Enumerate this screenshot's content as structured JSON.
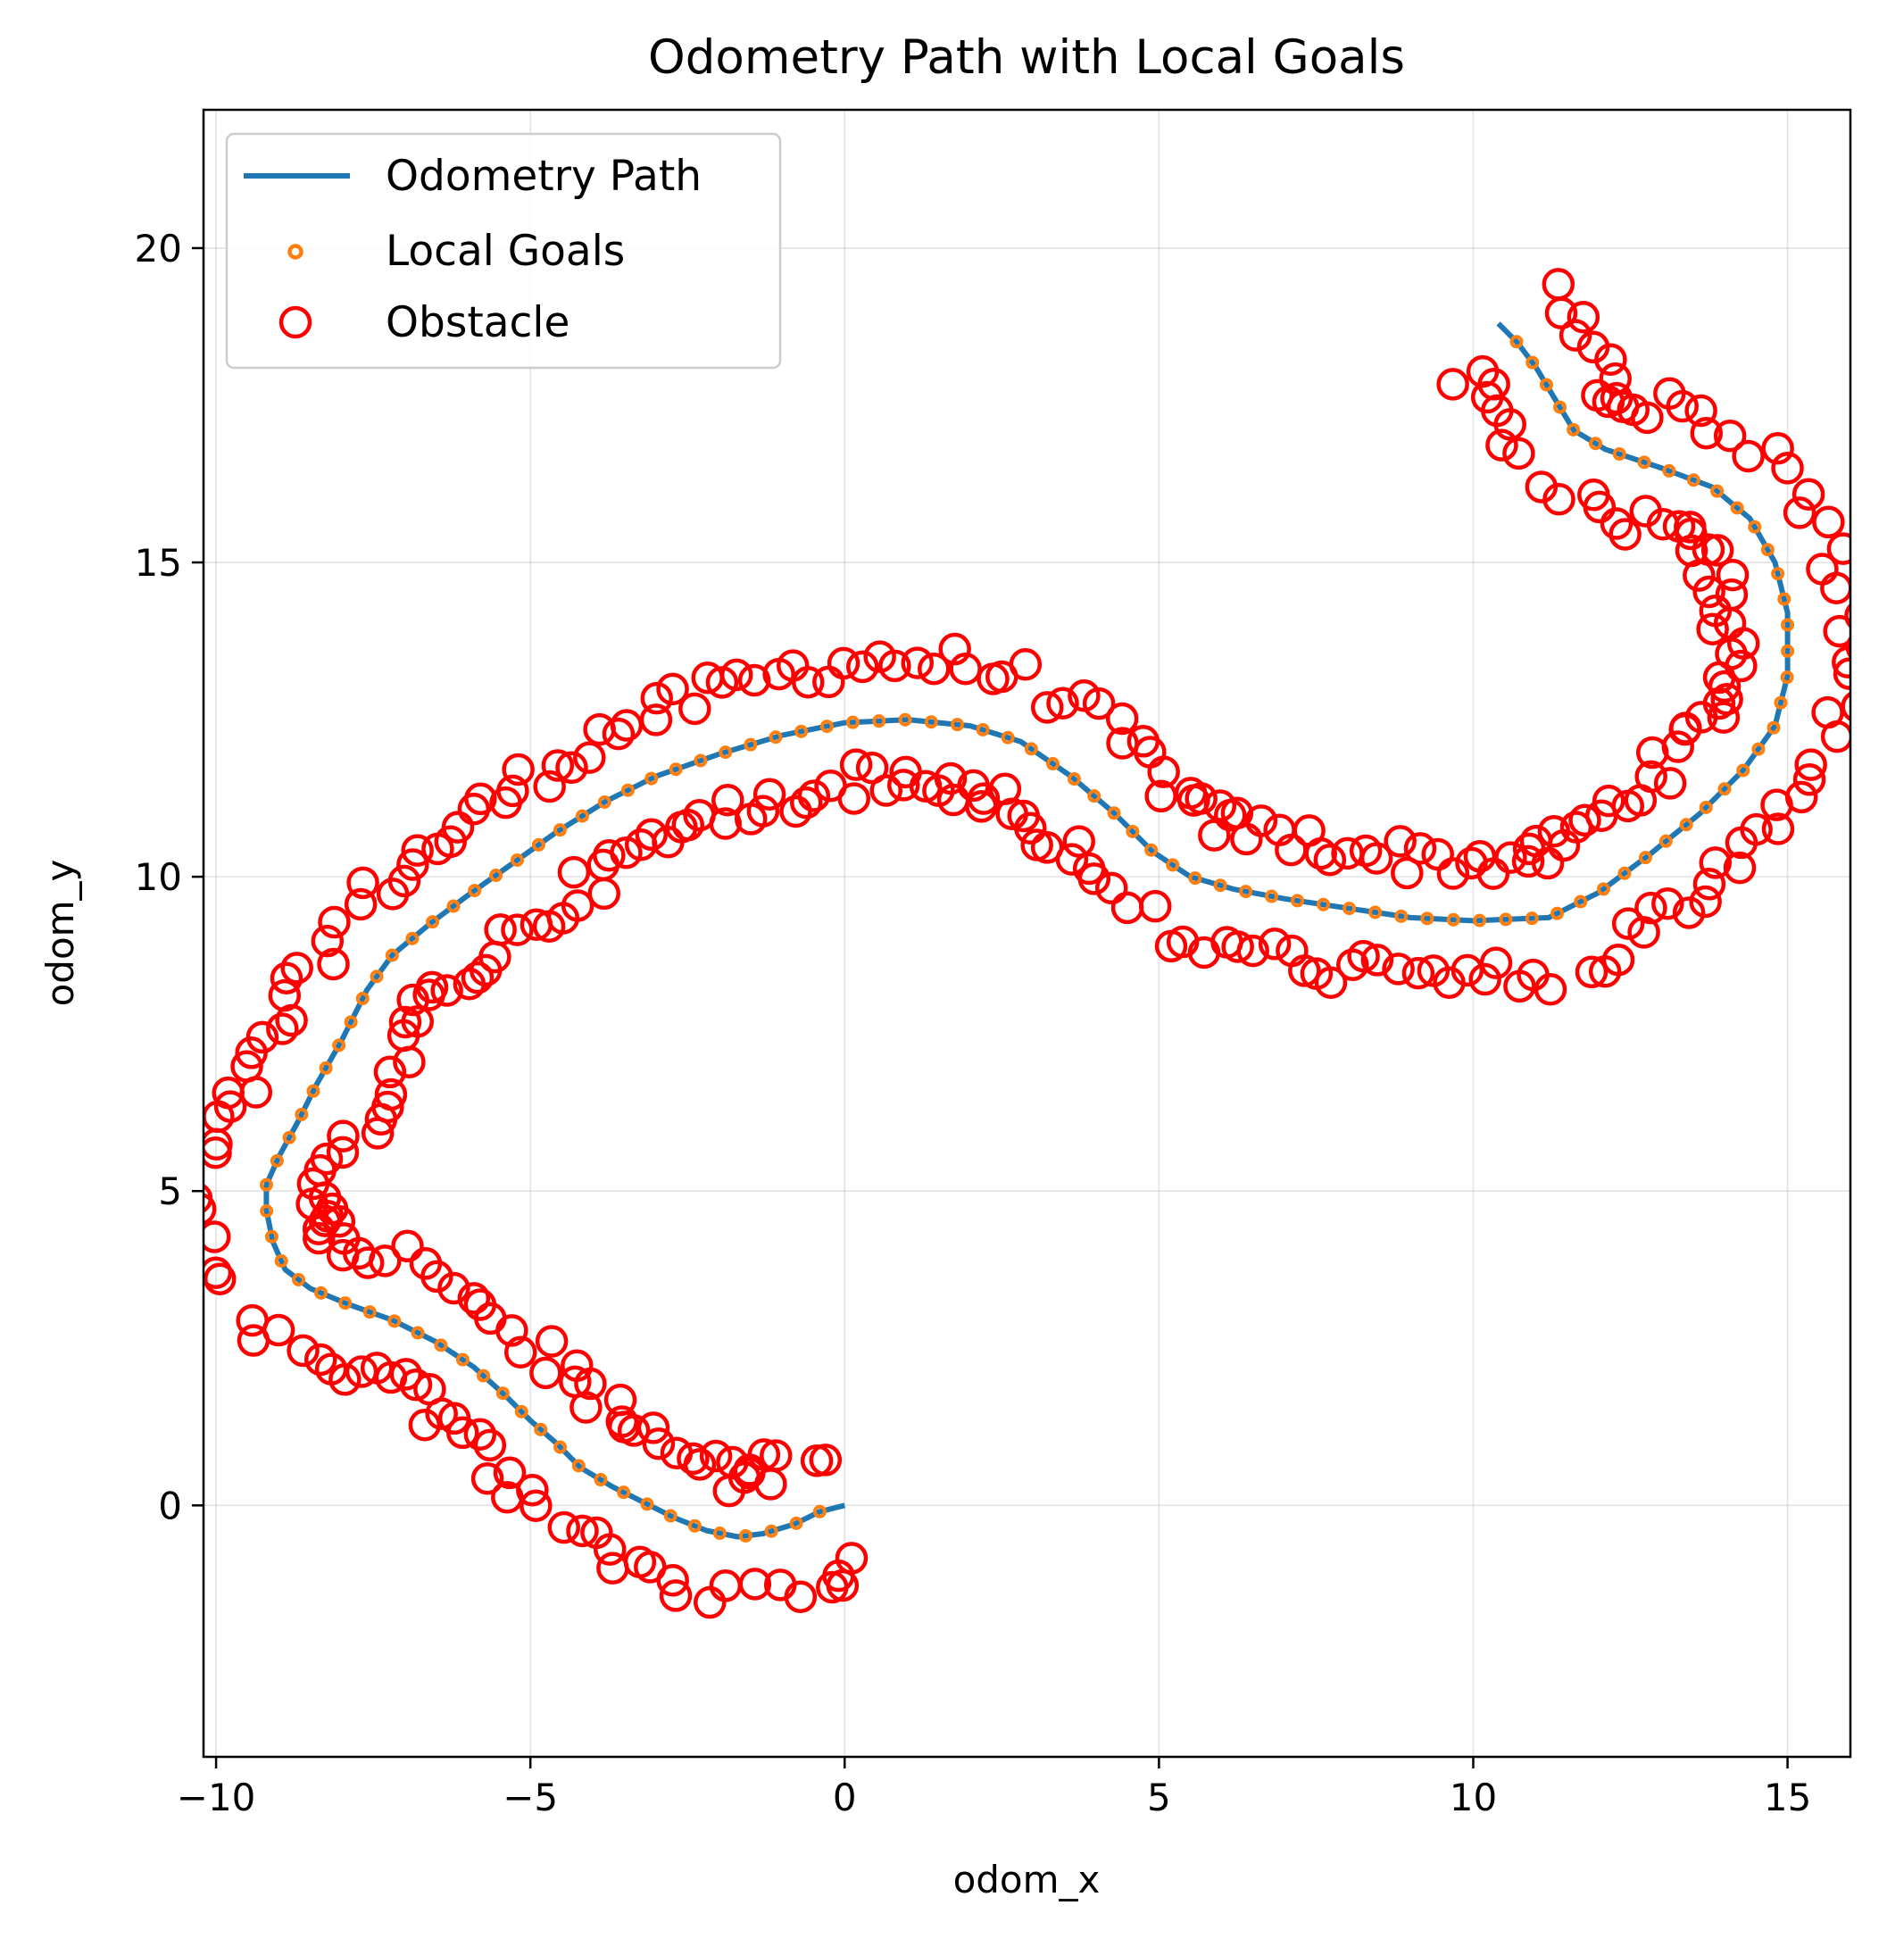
{
  "chart_data": {
    "type": "line",
    "title": "Odometry Path with Local Goals",
    "xlabel": "odom_x",
    "ylabel": "odom_y",
    "xlim": [
      -10.2,
      16.0
    ],
    "ylim": [
      -4.0,
      22.2
    ],
    "xticks": [
      -10,
      -5,
      0,
      5,
      10,
      15
    ],
    "yticks": [
      0,
      5,
      10,
      15,
      20
    ],
    "xtick_labels": [
      "−10",
      "−5",
      "0",
      "5",
      "10",
      "15"
    ],
    "ytick_labels": [
      "0",
      "5",
      "10",
      "15",
      "20"
    ],
    "grid": true,
    "legend": {
      "placement": "top-left",
      "entries": [
        "Odometry Path",
        "Local Goals",
        "Obstacle"
      ]
    },
    "colors": {
      "path": "#1f77b4",
      "goals": "#ff7f0e",
      "obstacle": "#ff0000"
    },
    "series": [
      {
        "name": "Odometry Path",
        "kind": "line",
        "points": [
          [
            0.0,
            0.0
          ],
          [
            -0.4,
            -0.1
          ],
          [
            -0.8,
            -0.3
          ],
          [
            -1.3,
            -0.45
          ],
          [
            -1.7,
            -0.5
          ],
          [
            -2.2,
            -0.4
          ],
          [
            -2.7,
            -0.2
          ],
          [
            -3.2,
            0.05
          ],
          [
            -3.7,
            0.3
          ],
          [
            -4.2,
            0.6
          ],
          [
            -4.6,
            1.0
          ],
          [
            -5.0,
            1.35
          ],
          [
            -5.4,
            1.75
          ],
          [
            -5.9,
            2.2
          ],
          [
            -6.5,
            2.6
          ],
          [
            -7.2,
            2.95
          ],
          [
            -7.9,
            3.2
          ],
          [
            -8.5,
            3.45
          ],
          [
            -8.9,
            3.75
          ],
          [
            -9.1,
            4.2
          ],
          [
            -9.2,
            4.7
          ],
          [
            -9.2,
            5.1
          ],
          [
            -9.0,
            5.55
          ],
          [
            -8.7,
            6.1
          ],
          [
            -8.4,
            6.7
          ],
          [
            -8.0,
            7.4
          ],
          [
            -7.6,
            8.2
          ],
          [
            -7.2,
            8.75
          ],
          [
            -6.6,
            9.25
          ],
          [
            -6.0,
            9.7
          ],
          [
            -5.3,
            10.2
          ],
          [
            -4.6,
            10.7
          ],
          [
            -3.8,
            11.2
          ],
          [
            -3.0,
            11.6
          ],
          [
            -2.0,
            11.95
          ],
          [
            -1.0,
            12.25
          ],
          [
            0.0,
            12.45
          ],
          [
            1.0,
            12.5
          ],
          [
            2.0,
            12.4
          ],
          [
            2.8,
            12.15
          ],
          [
            3.6,
            11.6
          ],
          [
            4.3,
            11.0
          ],
          [
            4.9,
            10.4
          ],
          [
            5.5,
            10.0
          ],
          [
            6.2,
            9.8
          ],
          [
            7.0,
            9.65
          ],
          [
            8.0,
            9.5
          ],
          [
            9.0,
            9.35
          ],
          [
            10.0,
            9.3
          ],
          [
            11.2,
            9.35
          ],
          [
            12.0,
            9.75
          ],
          [
            12.8,
            10.35
          ],
          [
            13.6,
            11.0
          ],
          [
            14.3,
            11.7
          ],
          [
            14.8,
            12.4
          ],
          [
            15.0,
            13.2
          ],
          [
            15.0,
            14.2
          ],
          [
            14.8,
            15.0
          ],
          [
            14.4,
            15.7
          ],
          [
            13.8,
            16.2
          ],
          [
            13.0,
            16.5
          ],
          [
            12.1,
            16.8
          ],
          [
            11.6,
            17.1
          ],
          [
            11.3,
            17.6
          ],
          [
            11.0,
            18.1
          ],
          [
            10.7,
            18.5
          ],
          [
            10.4,
            18.8
          ]
        ]
      },
      {
        "name": "Local Goals",
        "kind": "markers",
        "source": "resample-path",
        "count": 118
      },
      {
        "name": "Obstacle",
        "kind": "markers",
        "source": "offset-path",
        "offset": 0.95,
        "jitter": 0.28,
        "count_per_side": 200
      }
    ]
  }
}
